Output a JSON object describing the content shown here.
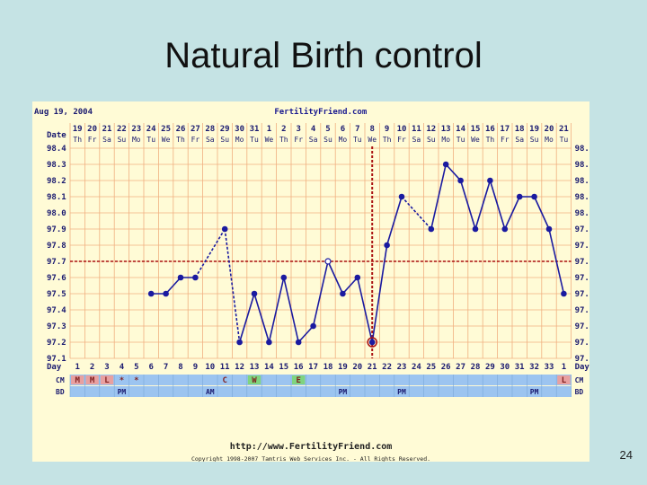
{
  "slide": {
    "title": "Natural Birth control",
    "page_number": "24"
  },
  "chart_data": {
    "type": "line",
    "date_label": "Date",
    "chart_date": "Aug 19, 2004",
    "site_name": "FertilityFriend.com",
    "footer_url": "http://www.FertilityFriend.com",
    "copyright": "Copyright 1998-2007 Tamtris Web Services Inc. - All Rights Reserved.",
    "dates": [
      "19",
      "20",
      "21",
      "22",
      "23",
      "24",
      "25",
      "26",
      "27",
      "28",
      "29",
      "30",
      "31",
      "1",
      "2",
      "3",
      "4",
      "5",
      "6",
      "7",
      "8",
      "9",
      "10",
      "11",
      "12",
      "13",
      "14",
      "15",
      "16",
      "17",
      "18",
      "19",
      "20",
      "21"
    ],
    "weekdays": [
      "Th",
      "Fr",
      "Sa",
      "Su",
      "Mo",
      "Tu",
      "We",
      "Th",
      "Fr",
      "Sa",
      "Su",
      "Mo",
      "Tu",
      "We",
      "Th",
      "Fr",
      "Sa",
      "Su",
      "Mo",
      "Tu",
      "We",
      "Th",
      "Fr",
      "Sa",
      "Su",
      "Mo",
      "Tu",
      "We",
      "Th",
      "Fr",
      "Sa",
      "Su",
      "Mo",
      "Tu"
    ],
    "cycle_days": [
      "1",
      "2",
      "3",
      "4",
      "5",
      "6",
      "7",
      "8",
      "9",
      "10",
      "11",
      "12",
      "13",
      "14",
      "15",
      "16",
      "17",
      "18",
      "19",
      "20",
      "21",
      "22",
      "23",
      "24",
      "25",
      "26",
      "27",
      "28",
      "29",
      "30",
      "31",
      "32",
      "33",
      "1"
    ],
    "y_ticks": [
      "98.4",
      "98.3",
      "98.2",
      "98.1",
      "98.0",
      "97.9",
      "97.8",
      "97.7",
      "97.6",
      "97.5",
      "97.4",
      "97.3",
      "97.2",
      "97.1"
    ],
    "ylim": [
      97.1,
      98.4
    ],
    "x_axis_label": "Day",
    "temperatures": [
      null,
      null,
      null,
      null,
      null,
      97.5,
      97.5,
      97.6,
      97.6,
      null,
      97.9,
      97.2,
      97.5,
      97.2,
      97.6,
      97.2,
      97.3,
      97.7,
      97.5,
      97.6,
      97.2,
      97.8,
      98.1,
      null,
      97.9,
      98.3,
      98.2,
      97.9,
      98.2,
      97.9,
      98.1,
      98.1,
      97.9,
      97.5
    ],
    "open_points": [
      17
    ],
    "highlight_points": [
      20
    ],
    "dashed_segments": [
      [
        8,
        10
      ],
      [
        10,
        11
      ],
      [
        22,
        24
      ]
    ],
    "coverline": 97.7,
    "ovulation_day_index": 20,
    "cm_label": "CM",
    "bd_label": "BD",
    "cm_entries": [
      {
        "day": 0,
        "text": "M",
        "color": "#e8a0a0"
      },
      {
        "day": 1,
        "text": "M",
        "color": "#e8a0a0"
      },
      {
        "day": 2,
        "text": "L",
        "color": "#e8a0a0"
      },
      {
        "day": 3,
        "text": "*",
        "color": ""
      },
      {
        "day": 4,
        "text": "*",
        "color": ""
      },
      {
        "day": 10,
        "text": "C",
        "color": ""
      },
      {
        "day": 12,
        "text": "W",
        "color": "#7fd47f"
      },
      {
        "day": 15,
        "text": "E",
        "color": "#7fd47f"
      },
      {
        "day": 33,
        "text": "L",
        "color": "#e8a0a0"
      }
    ],
    "bd_entries": [
      {
        "day": 3,
        "text": "PM"
      },
      {
        "day": 9,
        "text": "AM"
      },
      {
        "day": 18,
        "text": "PM"
      },
      {
        "day": 22,
        "text": "PM"
      },
      {
        "day": 31,
        "text": "PM"
      }
    ],
    "colors": {
      "line": "#1a1aa0",
      "coverline": "#aa1111",
      "grid": "#f0b080",
      "band": "#9cc4f0",
      "panel": "#fffbd6"
    }
  }
}
